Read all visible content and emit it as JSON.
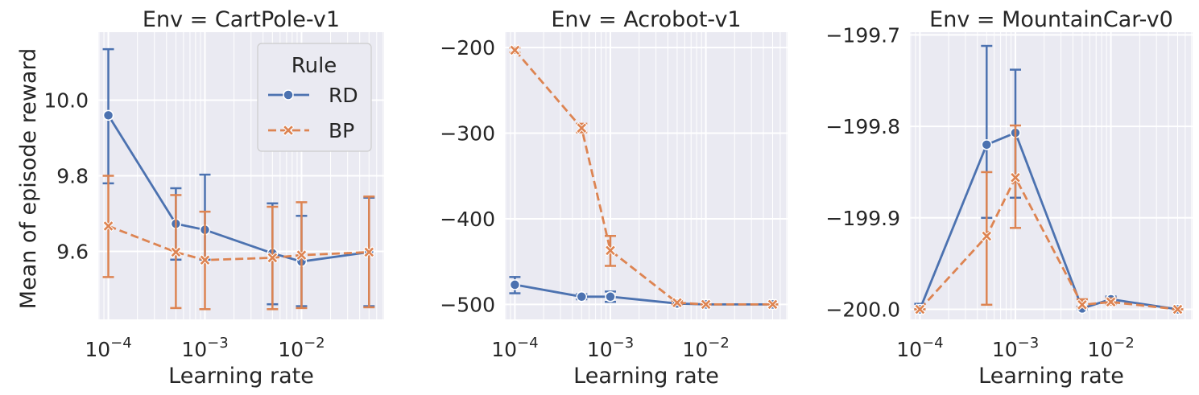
{
  "figure": {
    "ylabel": "Mean of episode reward",
    "legend": {
      "title": "Rule",
      "placement": "upper-right of first panel",
      "entries": [
        {
          "label": "RD",
          "color": "#4c72b0",
          "marker": "circle",
          "linestyle": "solid"
        },
        {
          "label": "BP",
          "color": "#dd8452",
          "marker": "x",
          "linestyle": "dashed"
        }
      ]
    }
  },
  "chart_data": [
    {
      "type": "line",
      "title": "Env = CartPole-v1",
      "xlabel": "Learning rate",
      "ylabel": "Mean of episode reward",
      "xscale": "log",
      "x": [
        0.0001,
        0.0005,
        0.001,
        0.005,
        0.01,
        0.05
      ],
      "xlim": [
        7.86e-05,
        0.0716
      ],
      "ylim": [
        9.42,
        10.18
      ],
      "xticks": [
        {
          "value": 0.0001,
          "label": "10^-4"
        },
        {
          "value": 0.001,
          "label": "10^-3"
        },
        {
          "value": 0.01,
          "label": "10^-2"
        }
      ],
      "yticks": [
        {
          "value": 9.6,
          "label": "9.6"
        },
        {
          "value": 9.8,
          "label": "9.8"
        },
        {
          "value": 10.0,
          "label": "10.0"
        }
      ],
      "grid": true,
      "series": [
        {
          "name": "RD",
          "values": [
            9.96,
            9.673,
            9.657,
            9.595,
            9.573,
            9.598
          ],
          "err_low": [
            9.78,
            9.578,
            9.578,
            9.46,
            9.455,
            9.455
          ],
          "err_high": [
            10.135,
            9.767,
            9.803,
            9.727,
            9.694,
            9.742
          ]
        },
        {
          "name": "BP",
          "values": [
            9.667,
            9.598,
            9.577,
            9.583,
            9.59,
            9.598
          ],
          "err_low": [
            9.532,
            9.45,
            9.447,
            9.447,
            9.45,
            9.452
          ],
          "err_high": [
            9.8,
            9.749,
            9.705,
            9.718,
            9.73,
            9.745
          ]
        }
      ]
    },
    {
      "type": "line",
      "title": "Env = Acrobot-v1",
      "xlabel": "Learning rate",
      "xscale": "log",
      "x": [
        0.0001,
        0.0005,
        0.001,
        0.005,
        0.01,
        0.05
      ],
      "xlim": [
        7.86e-05,
        0.0716
      ],
      "ylim": [
        -517.5,
        -182
      ],
      "xticks": [
        {
          "value": 0.0001,
          "label": "10^-4"
        },
        {
          "value": 0.001,
          "label": "10^-3"
        },
        {
          "value": 0.01,
          "label": "10^-2"
        }
      ],
      "yticks": [
        {
          "value": -500,
          "label": "−500"
        },
        {
          "value": -400,
          "label": "−400"
        },
        {
          "value": -300,
          "label": "−300"
        },
        {
          "value": -200,
          "label": "−200"
        }
      ],
      "grid": true,
      "series": [
        {
          "name": "RD",
          "values": [
            -477,
            -491,
            -491,
            -499,
            -500,
            -500
          ],
          "err_low": [
            -487,
            -494,
            -497,
            -500,
            -500,
            -500
          ],
          "err_high": [
            -468,
            -488,
            -485,
            -498,
            -500,
            -500
          ]
        },
        {
          "name": "BP",
          "values": [
            -203,
            -294,
            -437,
            -498,
            -500,
            -500
          ],
          "err_low": [
            -206,
            -299,
            -455,
            -500,
            -500,
            -500
          ],
          "err_high": [
            -200,
            -289,
            -420,
            -496,
            -500,
            -500
          ]
        }
      ]
    },
    {
      "type": "line",
      "title": "Env = MountainCar-v0",
      "xlabel": "Learning rate",
      "xscale": "log",
      "x": [
        0.0001,
        0.0005,
        0.001,
        0.005,
        0.01,
        0.05
      ],
      "xlim": [
        7.86e-05,
        0.0716
      ],
      "ylim": [
        -200.011,
        -199.697
      ],
      "xticks": [
        {
          "value": 0.0001,
          "label": "10^-4"
        },
        {
          "value": 0.001,
          "label": "10^-3"
        },
        {
          "value": 0.01,
          "label": "10^-2"
        }
      ],
      "yticks": [
        {
          "value": -200.0,
          "label": "−200.0"
        },
        {
          "value": -199.9,
          "label": "−199.9"
        },
        {
          "value": -199.8,
          "label": "−199.8"
        },
        {
          "value": -199.7,
          "label": "−199.7"
        }
      ],
      "grid": true,
      "series": [
        {
          "name": "RD",
          "values": [
            -200.0,
            -199.82,
            -199.807,
            -199.999,
            -199.989,
            -200.0
          ],
          "err_low": [
            -200.0,
            -199.9,
            -199.878,
            -200.0,
            -199.992,
            -200.0
          ],
          "err_high": [
            -199.994,
            -199.712,
            -199.738,
            -199.997,
            -199.986,
            -200.0
          ]
        },
        {
          "name": "BP",
          "values": [
            -200.0,
            -199.92,
            -199.856,
            -199.995,
            -199.992,
            -200.0
          ],
          "err_low": [
            -200.0,
            -199.995,
            -199.911,
            -199.998,
            -199.995,
            -200.0
          ],
          "err_high": [
            -200.0,
            -199.85,
            -199.799,
            -199.989,
            -199.988,
            -200.0
          ]
        }
      ]
    }
  ]
}
